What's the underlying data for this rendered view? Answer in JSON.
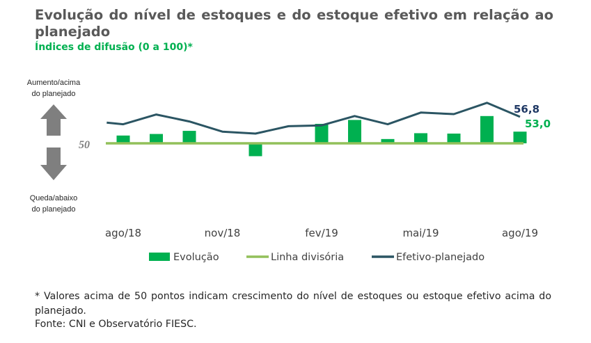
{
  "title": "Evolução do nível de estoques e do estoque efetivo em relação ao planejado",
  "subtitle": "Índices de difusão (0 a 100)*",
  "chart_data": {
    "type": "bar+line",
    "baseline": 50,
    "baseline_label": "50",
    "upper_label_lines": [
      "Aumento/acima",
      "do planejado"
    ],
    "lower_label_lines": [
      "Queda/abaixo",
      "do planejado"
    ],
    "x_tick_labels": [
      "ago/18",
      "nov/18",
      "fev/19",
      "mai/19",
      "ago/19"
    ],
    "x_tick_indices": [
      0,
      3,
      6,
      9,
      12
    ],
    "series": [
      {
        "name": "Evolução",
        "type": "bar",
        "color": "#00b050",
        "values": [
          52.0,
          52.4,
          53.2,
          50.0,
          46.7,
          50.0,
          55.0,
          56.0,
          51.1,
          52.6,
          52.5,
          57.0,
          53.0
        ]
      },
      {
        "name": "Linha divisória",
        "type": "line",
        "color": "#92c05a",
        "values": [
          50,
          50,
          50,
          50,
          50,
          50,
          50,
          50,
          50,
          50,
          50,
          50,
          50
        ]
      },
      {
        "name": "Efetivo-planejado",
        "type": "line",
        "color": "#2b5563",
        "points": [
          [
            -0.5,
            55.3
          ],
          [
            0,
            54.9
          ],
          [
            1,
            57.4
          ],
          [
            2,
            55.6
          ],
          [
            3,
            53.0
          ],
          [
            4,
            52.5
          ],
          [
            5,
            54.4
          ],
          [
            6,
            54.6
          ],
          [
            7,
            57.0
          ],
          [
            8,
            54.9
          ],
          [
            9,
            57.9
          ],
          [
            10,
            57.5
          ],
          [
            11,
            60.4
          ],
          [
            12,
            56.8
          ]
        ]
      }
    ],
    "annotations": [
      {
        "series": "Efetivo-planejado",
        "label": "56,8",
        "color": "#1f3864"
      },
      {
        "series": "Evolução",
        "label": "53,0",
        "color": "#00b050"
      }
    ],
    "legend": {
      "placement": "bottom"
    }
  },
  "note": "* Valores acima de 50 pontos indicam crescimento do nível de estoques ou estoque efetivo acima do planejado.",
  "source": "Fonte: CNI e Observatório FIESC."
}
